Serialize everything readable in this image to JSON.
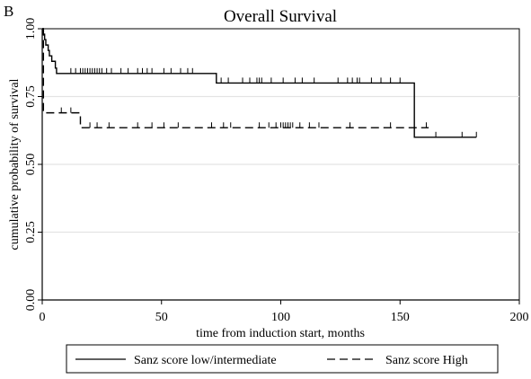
{
  "panel_label": "B",
  "chart_data": {
    "type": "line",
    "step": true,
    "title": "Overall Survival",
    "xlabel": "time from induction start, months",
    "ylabel": "cumulative probability of survival",
    "xlim": [
      0,
      200
    ],
    "ylim": [
      0,
      1
    ],
    "xticks": [
      0,
      50,
      100,
      150,
      200
    ],
    "yticks": [
      0,
      0.25,
      0.5,
      0.75,
      1
    ],
    "xtick_labels": [
      "0",
      "50",
      "100",
      "150",
      "200"
    ],
    "ytick_labels": [
      "0.00",
      "0.25",
      "0.50",
      "0.75",
      "1.00"
    ],
    "grid": "horizontal",
    "legend": {
      "placement": "bottom"
    },
    "series": [
      {
        "name": "Sanz score low/intermediate",
        "line_style": "solid",
        "color": "#000000",
        "steps": [
          [
            0,
            1.0
          ],
          [
            0.5,
            0.98
          ],
          [
            1,
            0.96
          ],
          [
            1.5,
            0.94
          ],
          [
            2.5,
            0.92
          ],
          [
            3,
            0.9
          ],
          [
            4,
            0.88
          ],
          [
            5.5,
            0.855
          ],
          [
            6,
            0.835
          ],
          [
            73,
            0.8
          ],
          [
            156,
            0.6
          ],
          [
            182,
            0.6
          ]
        ],
        "censor_times": [
          12,
          14,
          16,
          17,
          18,
          19,
          20,
          21,
          22,
          23,
          24,
          25,
          27,
          29,
          33,
          36,
          40,
          42,
          44,
          46,
          51,
          54,
          58,
          61,
          63,
          75,
          78,
          84,
          87,
          90,
          91,
          92,
          96,
          101,
          106,
          109,
          114,
          124,
          128,
          130,
          132,
          133,
          138,
          142,
          146,
          150,
          165,
          176,
          182
        ]
      },
      {
        "name": "Sanz score High",
        "line_style": "dashed",
        "color": "#000000",
        "steps": [
          [
            0,
            1.0
          ],
          [
            0.5,
            0.69
          ],
          [
            16,
            0.635
          ],
          [
            162,
            0.635
          ]
        ],
        "censor_times": [
          8,
          12,
          20,
          23,
          28,
          40,
          46,
          51,
          57,
          71,
          76,
          79,
          91,
          95,
          98,
          100,
          101,
          102,
          103,
          104,
          105,
          108,
          112,
          116,
          129,
          146,
          161
        ]
      }
    ]
  }
}
